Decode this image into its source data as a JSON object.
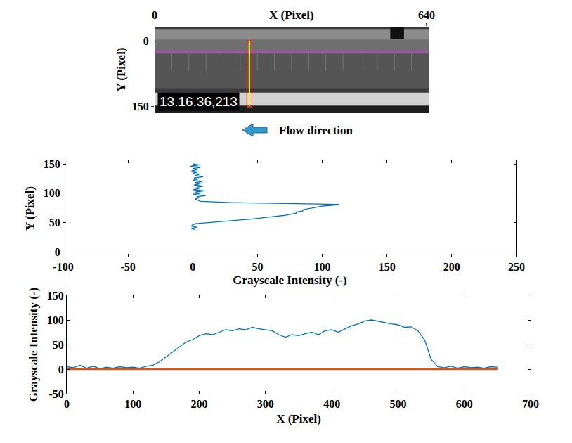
{
  "chart_data": [
    {
      "type": "image",
      "x_label": "X (Pixel)",
      "y_label": "Y (Pixel)",
      "xlim": [
        0,
        645
      ],
      "ylim": [
        163,
        -32
      ],
      "xticks": [
        0,
        640
      ],
      "yticks": [
        0,
        150
      ],
      "timestamp": "13.16.36,213",
      "caption": "Flow direction",
      "lines": [
        {
          "orientation": "horizontal",
          "value": 25,
          "color": "#c03fd0"
        },
        {
          "orientation": "vertical",
          "value": 223,
          "from": 0,
          "to": 150,
          "color": "#ffff00"
        }
      ]
    },
    {
      "type": "line",
      "x_label": "Grayscale Intensity (-)",
      "y_label": "Y (Pixel)",
      "xlim": [
        -100,
        250
      ],
      "ylim": [
        -8,
        156
      ],
      "xticks": [
        -100,
        -50,
        0,
        50,
        100,
        150,
        200,
        250
      ],
      "yticks": [
        0,
        50,
        100,
        150
      ],
      "grid": false,
      "series": [
        {
          "color": "#0072bd",
          "x": [
            0,
            5,
            -2,
            6,
            0,
            3,
            -1,
            4,
            0,
            5,
            2,
            8,
            1,
            4,
            0,
            7,
            2,
            6,
            1,
            8,
            3,
            5,
            0,
            9,
            2,
            6,
            0,
            10,
            3,
            5,
            2,
            4,
            6,
            30,
            80,
            113,
            110,
            100,
            95,
            90,
            85,
            85,
            80,
            80,
            75,
            70,
            62,
            55,
            45,
            35,
            22,
            12,
            2,
            0,
            -1,
            3,
            -1,
            2
          ],
          "y": [
            150,
            148,
            146,
            144,
            142,
            140,
            138,
            136,
            134,
            132,
            130,
            128,
            126,
            124,
            122,
            120,
            118,
            116,
            114,
            112,
            110,
            108,
            106,
            104,
            102,
            100,
            98,
            96,
            94,
            92,
            90,
            88,
            86,
            84,
            82,
            81,
            80,
            78,
            76,
            74,
            72,
            70,
            68,
            66,
            64,
            62,
            60,
            58,
            56,
            54,
            52,
            50,
            48,
            46,
            44,
            42,
            40,
            38
          ]
        }
      ]
    },
    {
      "type": "line",
      "x_label": "X (Pixel)",
      "y_label": "Grayscale Intensity (-)",
      "xlim": [
        0,
        700
      ],
      "ylim": [
        -50,
        150
      ],
      "xticks": [
        0,
        100,
        200,
        300,
        400,
        500,
        600,
        700
      ],
      "yticks": [
        -50,
        0,
        50,
        100,
        150
      ],
      "grid": false,
      "x": [
        0,
        10,
        20,
        30,
        40,
        50,
        60,
        70,
        80,
        90,
        100,
        110,
        120,
        130,
        140,
        150,
        160,
        170,
        180,
        190,
        200,
        210,
        220,
        230,
        240,
        250,
        260,
        270,
        280,
        290,
        300,
        310,
        320,
        330,
        340,
        350,
        360,
        370,
        380,
        390,
        400,
        410,
        420,
        430,
        440,
        450,
        460,
        470,
        480,
        490,
        500,
        510,
        520,
        530,
        540,
        550,
        560,
        570,
        580,
        590,
        600,
        610,
        620,
        630,
        640,
        650
      ],
      "series": [
        {
          "color": "#0072bd",
          "values": [
            5,
            3,
            8,
            2,
            6,
            1,
            4,
            2,
            5,
            3,
            4,
            2,
            6,
            8,
            15,
            25,
            35,
            45,
            55,
            60,
            68,
            72,
            70,
            75,
            80,
            78,
            82,
            80,
            85,
            82,
            80,
            78,
            70,
            65,
            70,
            68,
            72,
            75,
            70,
            78,
            80,
            75,
            82,
            88,
            92,
            98,
            100,
            97,
            95,
            92,
            90,
            85,
            86,
            78,
            60,
            20,
            5,
            3,
            6,
            2,
            5,
            3,
            4,
            2,
            5,
            4
          ]
        },
        {
          "color": "#d95319",
          "values": [
            0,
            0,
            0,
            0,
            0,
            0,
            0,
            0,
            0,
            0,
            0,
            0,
            0,
            0,
            0,
            0,
            0,
            0,
            0,
            0,
            0,
            0,
            0,
            0,
            0,
            0,
            0,
            0,
            0,
            0,
            0,
            0,
            0,
            0,
            0,
            0,
            0,
            0,
            0,
            0,
            0,
            0,
            0,
            0,
            0,
            0,
            0,
            0,
            0,
            0,
            0,
            0,
            0,
            0,
            0,
            0,
            0,
            0,
            0,
            0,
            0,
            0,
            0,
            0,
            0,
            0
          ]
        }
      ]
    }
  ]
}
